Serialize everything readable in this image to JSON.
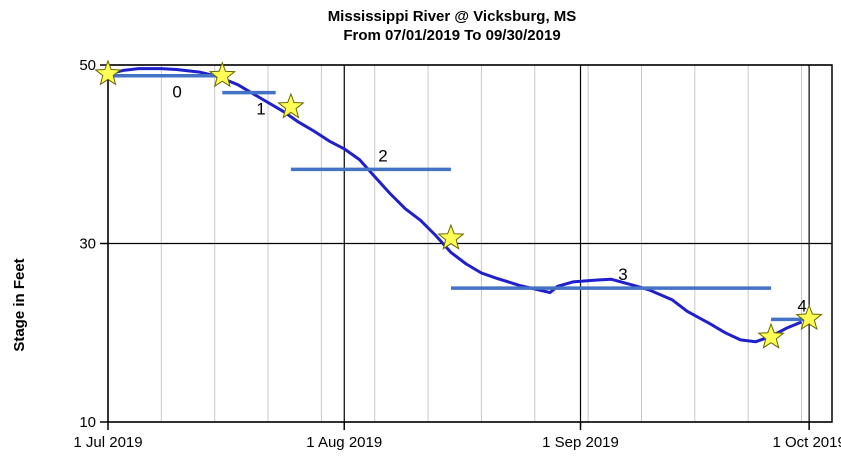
{
  "chart_data": {
    "type": "line",
    "title": "Mississippi River @ Vicksburg, MS",
    "subtitle": "From 07/01/2019 To 09/30/2019",
    "xlabel": "",
    "ylabel": "Stage in Feet",
    "xlim": [
      "2019-07-01",
      "2019-10-04"
    ],
    "ylim": [
      10,
      50
    ],
    "y_ticks": [
      10,
      30,
      50
    ],
    "x_ticks": [
      {
        "date": "2019-07-01",
        "label": "1 Jul 2019"
      },
      {
        "date": "2019-08-01",
        "label": "1 Aug 2019"
      },
      {
        "date": "2019-09-01",
        "label": "1 Sep 2019"
      },
      {
        "date": "2019-10-01",
        "label": "1 Oct 2019"
      }
    ],
    "grid": true,
    "line_color": "#1f1fcc",
    "series": [
      {
        "x": [
          "2019-07-01",
          "2019-07-03",
          "2019-07-05",
          "2019-07-08",
          "2019-07-10",
          "2019-07-13",
          "2019-07-15",
          "2019-07-16",
          "2019-07-18",
          "2019-07-20",
          "2019-07-22",
          "2019-07-24",
          "2019-07-26",
          "2019-07-28",
          "2019-07-30",
          "2019-08-01",
          "2019-08-03",
          "2019-08-05",
          "2019-08-07",
          "2019-08-09",
          "2019-08-11",
          "2019-08-13",
          "2019-08-15",
          "2019-08-17",
          "2019-08-19",
          "2019-08-21",
          "2019-08-24",
          "2019-08-26",
          "2019-08-28",
          "2019-08-29",
          "2019-08-31",
          "2019-09-03",
          "2019-09-05",
          "2019-09-08",
          "2019-09-10",
          "2019-09-13",
          "2019-09-15",
          "2019-09-18",
          "2019-09-20",
          "2019-09-22",
          "2019-09-24",
          "2019-09-26",
          "2019-09-28",
          "2019-09-30"
        ],
        "y": [
          49.0,
          49.4,
          49.6,
          49.6,
          49.5,
          49.2,
          48.8,
          48.5,
          47.8,
          46.8,
          45.8,
          44.8,
          43.6,
          42.6,
          41.5,
          40.6,
          39.4,
          37.5,
          35.6,
          33.9,
          32.6,
          30.9,
          29.0,
          27.7,
          26.7,
          26.1,
          25.3,
          24.9,
          24.5,
          25.2,
          25.7,
          25.9,
          26.0,
          25.3,
          24.8,
          23.7,
          22.4,
          21.0,
          20.0,
          19.2,
          19.0,
          19.6,
          20.5,
          21.2
        ]
      }
    ],
    "star_markers": {
      "color": "#ffff55",
      "points": [
        {
          "x": "2019-07-01",
          "y": 49.0
        },
        {
          "x": "2019-07-16",
          "y": 48.8
        },
        {
          "x": "2019-07-25",
          "y": 45.3
        },
        {
          "x": "2019-08-15",
          "y": 30.6
        },
        {
          "x": "2019-09-26",
          "y": 19.5
        },
        {
          "x": "2019-10-01",
          "y": 21.6
        }
      ]
    },
    "level_segments": {
      "color": "#4472c4",
      "items": [
        {
          "label": "0",
          "x_start": "2019-07-01",
          "x_end": "2019-07-16",
          "y": 48.8
        },
        {
          "label": "1",
          "x_start": "2019-07-16",
          "x_end": "2019-07-23",
          "y": 46.9
        },
        {
          "label": "2",
          "x_start": "2019-07-25",
          "x_end": "2019-08-15",
          "y": 38.3
        },
        {
          "label": "3",
          "x_start": "2019-08-15",
          "x_end": "2019-09-26",
          "y": 25.0
        },
        {
          "label": "4",
          "x_start": "2019-09-26",
          "x_end": "2019-10-01",
          "y": 21.5
        }
      ]
    }
  }
}
